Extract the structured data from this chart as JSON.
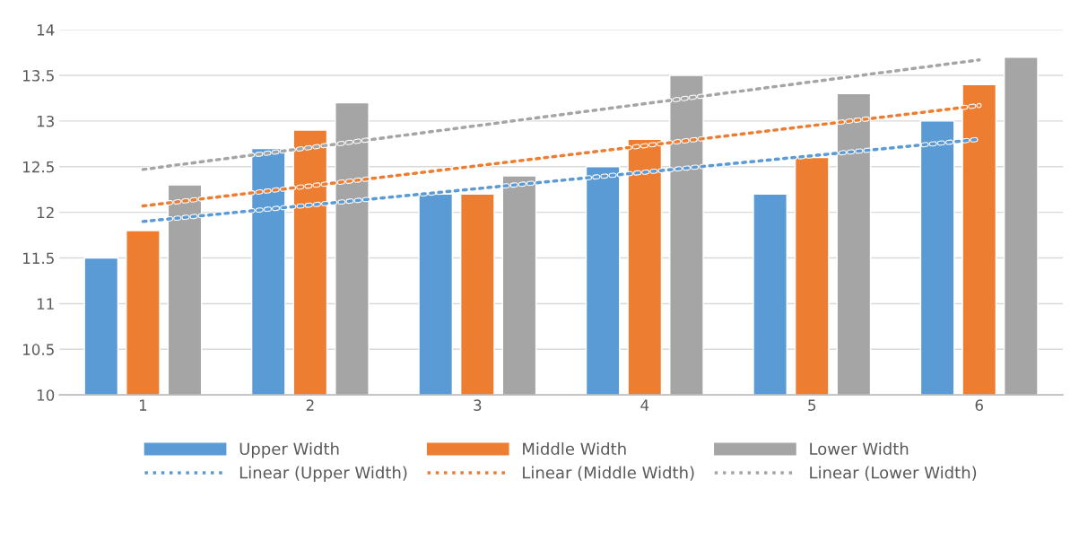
{
  "chart_data": {
    "type": "bar",
    "categories": [
      "1",
      "2",
      "3",
      "4",
      "5",
      "6"
    ],
    "series": [
      {
        "name": "Upper Width",
        "color": "#5b9bd5",
        "values": [
          11.5,
          12.7,
          12.2,
          12.5,
          12.2,
          13.0
        ]
      },
      {
        "name": "Middle Width",
        "color": "#ed7d31",
        "values": [
          11.8,
          12.9,
          12.2,
          12.8,
          12.6,
          13.4
        ]
      },
      {
        "name": "Lower Width",
        "color": "#a5a5a5",
        "values": [
          12.3,
          13.2,
          12.4,
          13.5,
          13.3,
          13.7
        ]
      },
      {
        "name": "Linear (Upper Width)",
        "type": "line",
        "line_style": "dotted",
        "color": "#5b9bd5",
        "values": [
          11.9,
          12.08,
          12.26,
          12.44,
          12.62,
          12.8
        ]
      },
      {
        "name": "Linear (Middle Width)",
        "type": "line",
        "line_style": "dotted",
        "color": "#ed7d31",
        "values": [
          12.07,
          12.29,
          12.51,
          12.73,
          12.95,
          13.17
        ]
      },
      {
        "name": "Linear (Lower Width)",
        "type": "line",
        "line_style": "dotted",
        "color": "#a5a5a5",
        "values": [
          12.47,
          12.71,
          12.95,
          13.19,
          13.43,
          13.67
        ]
      }
    ],
    "ylim": [
      10,
      14
    ],
    "yticks": [
      10,
      10.5,
      11,
      11.5,
      12,
      12.5,
      13,
      13.5,
      14
    ],
    "grid": "y",
    "legend": "bottom"
  }
}
